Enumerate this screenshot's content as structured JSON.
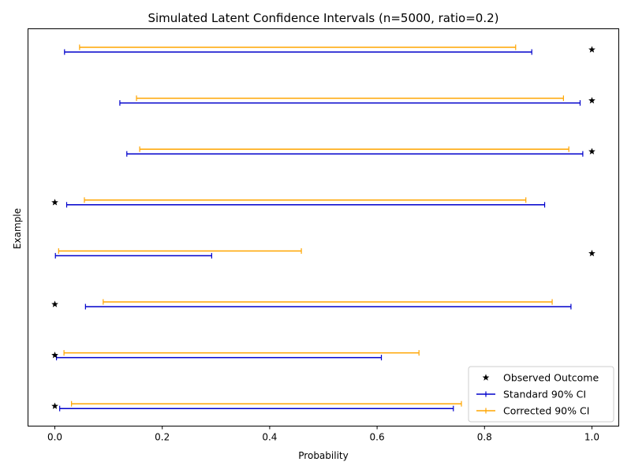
{
  "chart_data": {
    "type": "errorbar",
    "title": "Simulated Latent Confidence Intervals (n=5000, ratio=0.2)",
    "xlabel": "Probability",
    "ylabel": "Example",
    "xlim": [
      -0.05,
      1.05
    ],
    "xticks": [
      0.0,
      0.2,
      0.4,
      0.6,
      0.8,
      1.0
    ],
    "xtick_labels": [
      "0.0",
      "0.2",
      "0.4",
      "0.6",
      "0.8",
      "1.0"
    ],
    "grid": false,
    "legend_position": "lower right",
    "series": [
      {
        "name": "Observed Outcome",
        "kind": "marker",
        "color": "#000000",
        "values": [
          1,
          1,
          1,
          0,
          1,
          0,
          0,
          0
        ]
      },
      {
        "name": "Standard 90% CI",
        "kind": "interval",
        "color": "#0000cc",
        "intervals": [
          [
            0.018,
            0.888
          ],
          [
            0.121,
            0.978
          ],
          [
            0.134,
            0.983
          ],
          [
            0.022,
            0.912
          ],
          [
            0.001,
            0.292
          ],
          [
            0.057,
            0.961
          ],
          [
            0.003,
            0.608
          ],
          [
            0.009,
            0.742
          ]
        ]
      },
      {
        "name": "Corrected 90% CI",
        "kind": "interval",
        "color": "#ffa500",
        "intervals": [
          [
            0.046,
            0.858
          ],
          [
            0.152,
            0.947
          ],
          [
            0.158,
            0.957
          ],
          [
            0.055,
            0.877
          ],
          [
            0.007,
            0.459
          ],
          [
            0.09,
            0.926
          ],
          [
            0.017,
            0.678
          ],
          [
            0.031,
            0.757
          ]
        ]
      }
    ]
  }
}
